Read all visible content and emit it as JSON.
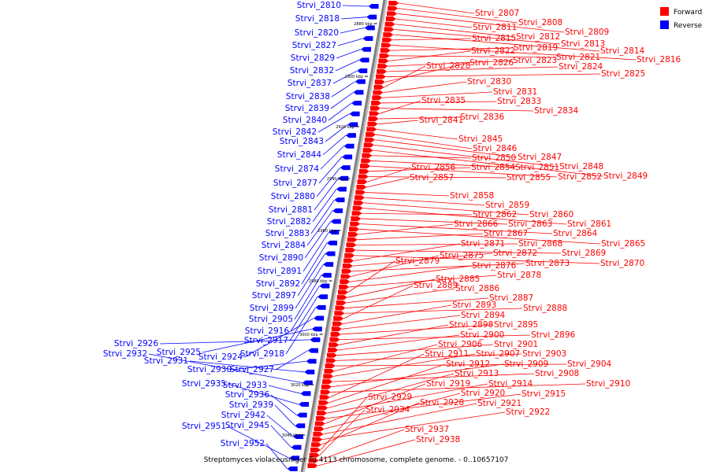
{
  "title": "Streptomyces violaceusniger Tu 4113 chromosome, complete genome. - 0..10657107",
  "legend": [
    {
      "label": "Forward",
      "color": "#ff0000"
    },
    {
      "label": "Reverse",
      "color": "#0000ff"
    }
  ],
  "colors": {
    "forward": "#ff0000",
    "reverse": "#0000ff",
    "axis": "#808080"
  },
  "ticks": [
    "2880 kbp",
    "2900 kbp",
    "2920 kbp",
    "2940 kbp",
    "2960 kbp",
    "2980 kbp",
    "3000 kbp",
    "3020 kbp",
    "3040 kbp"
  ],
  "forward_genes": [
    "Strvi_2807",
    "Strvi_2808",
    "Strvi_2809",
    "Strvi_2811",
    "Strvi_2812",
    "Strvi_2813",
    "Strvi_2814",
    "Strvi_2815",
    "Strvi_2816",
    "Strvi_2819",
    "Strvi_2821",
    "Strvi_2822",
    "Strvi_2823",
    "Strvi_2824",
    "Strvi_2825",
    "Strvi_2826",
    "Strvi_2828",
    "Strvi_2830",
    "Strvi_2831",
    "Strvi_2833",
    "Strvi_2834",
    "Strvi_2835",
    "Strvi_2836",
    "Strvi_2841",
    "Strvi_2845",
    "Strvi_2846",
    "Strvi_2847",
    "Strvi_2848",
    "Strvi_2849",
    "Strvi_2850",
    "Strvi_2851",
    "Strvi_2852",
    "Strvi_2854",
    "Strvi_2855",
    "Strvi_2856",
    "Strvi_2857",
    "Strvi_2858",
    "Strvi_2859",
    "Strvi_2860",
    "Strvi_2861",
    "Strvi_2862",
    "Strvi_2863",
    "Strvi_2864",
    "Strvi_2865",
    "Strvi_2866",
    "Strvi_2867",
    "Strvi_2868",
    "Strvi_2869",
    "Strvi_2870",
    "Strvi_2871",
    "Strvi_2872",
    "Strvi_2873",
    "Strvi_2875",
    "Strvi_2876",
    "Strvi_2878",
    "Strvi_2879",
    "Strvi_2885",
    "Strvi_2886",
    "Strvi_2887",
    "Strvi_2888",
    "Strvi_2889",
    "Strvi_2893",
    "Strvi_2894",
    "Strvi_2895",
    "Strvi_2896",
    "Strvi_2898",
    "Strvi_2900",
    "Strvi_2901",
    "Strvi_2903",
    "Strvi_2904",
    "Strvi_2906",
    "Strvi_2907",
    "Strvi_2908",
    "Strvi_2909",
    "Strvi_2910",
    "Strvi_2911",
    "Strvi_2912",
    "Strvi_2913",
    "Strvi_2914",
    "Strvi_2915",
    "Strvi_2919",
    "Strvi_2920",
    "Strvi_2921",
    "Strvi_2922",
    "Strvi_2928",
    "Strvi_2929",
    "Strvi_2934",
    "Strvi_2937",
    "Strvi_2938"
  ],
  "reverse_genes": [
    "Strvi_2810",
    "Strvi_2818",
    "Strvi_2820",
    "Strvi_2827",
    "Strvi_2829",
    "Strvi_2832",
    "Strvi_2837",
    "Strvi_2838",
    "Strvi_2839",
    "Strvi_2840",
    "Strvi_2842",
    "Strvi_2843",
    "Strvi_2844",
    "Strvi_2874",
    "Strvi_2877",
    "Strvi_2880",
    "Strvi_2881",
    "Strvi_2882",
    "Strvi_2883",
    "Strvi_2884",
    "Strvi_2890",
    "Strvi_2891",
    "Strvi_2892",
    "Strvi_2897",
    "Strvi_2899",
    "Strvi_2905",
    "Strvi_2916",
    "Strvi_2917",
    "Strvi_2918",
    "Strvi_2924",
    "Strvi_2925",
    "Strvi_2926",
    "Strvi_2927",
    "Strvi_2930",
    "Strvi_2931",
    "Strvi_2932",
    "Strvi_2933",
    "Strvi_2935",
    "Strvi_2936",
    "Strvi_2939",
    "Strvi_2942",
    "Strvi_2945",
    "Strvi_2951",
    "Strvi_2952"
  ]
}
